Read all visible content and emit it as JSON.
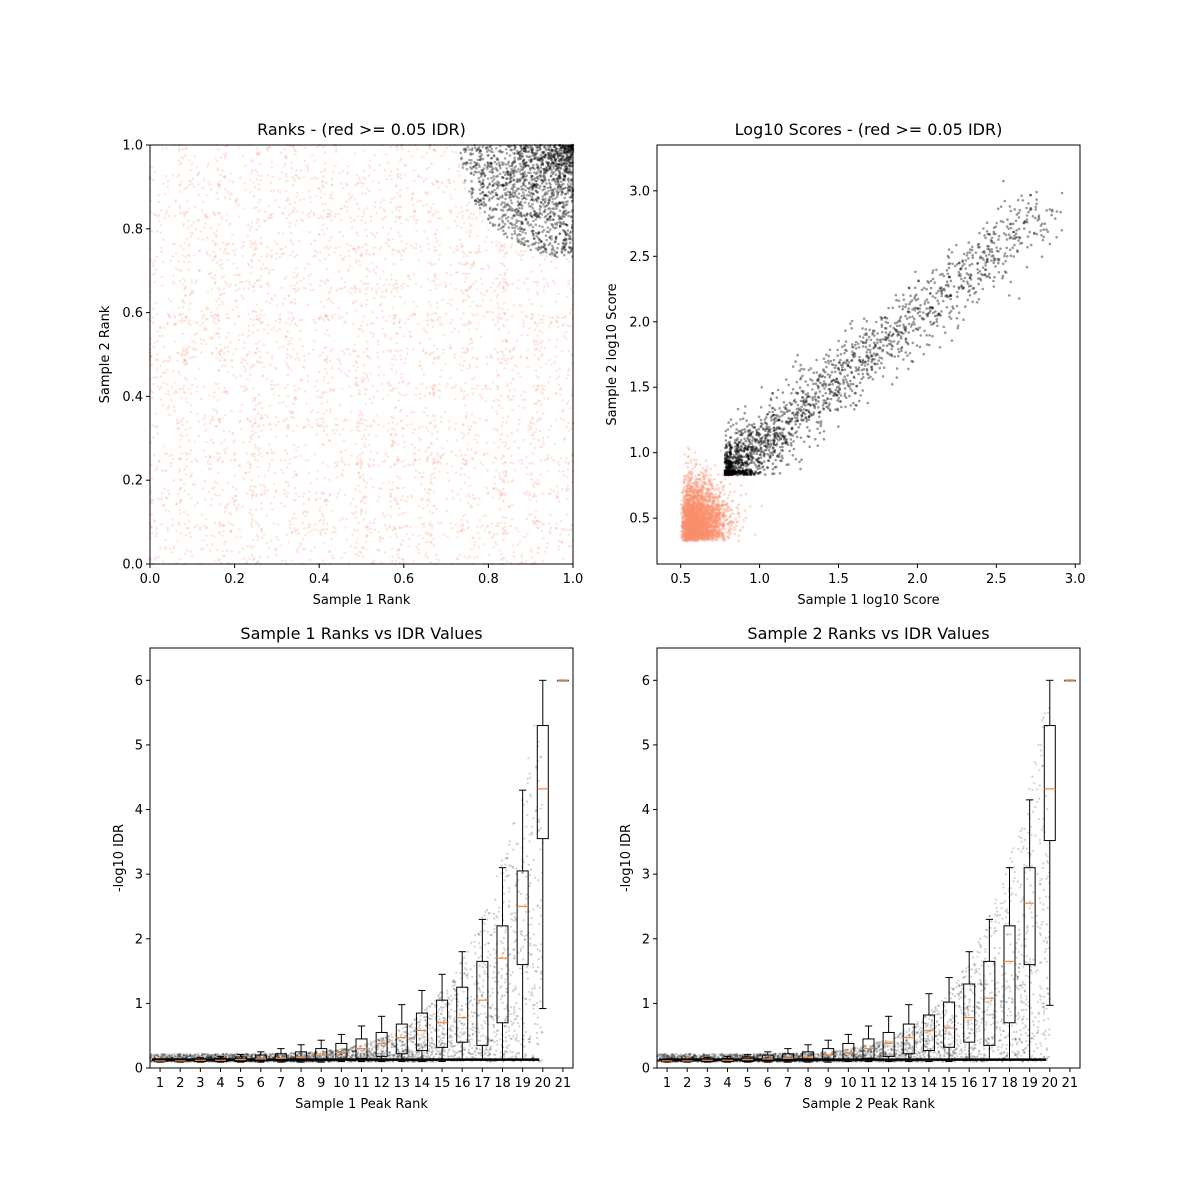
{
  "colors": {
    "pass": "#000000",
    "fail": "#fa8e6d",
    "median": "#f0883c",
    "frame": "#000000"
  },
  "chart_data": [
    {
      "type": "scatter",
      "title": "Ranks - (red >= 0.05 IDR)",
      "xlabel": "Sample 1 Rank",
      "ylabel": "Sample 2 Rank",
      "xlim": [
        0.0,
        1.0
      ],
      "ylim": [
        0.0,
        1.0
      ],
      "xticks": [
        "0.0",
        "0.2",
        "0.4",
        "0.6",
        "0.8",
        "1.0"
      ],
      "yticks": [
        "0.0",
        "0.2",
        "0.4",
        "0.6",
        "0.8",
        "1.0"
      ],
      "series": [
        {
          "name": "IDR >= 0.05",
          "color": "fail",
          "region": "uniform over [0,1] x [0,1] outside top-right arc"
        },
        {
          "name": "IDR < 0.05",
          "color": "pass",
          "region": "top-right corner, rank1 and rank2 above ~0.72"
        }
      ]
    },
    {
      "type": "scatter",
      "title": "Log10 Scores - (red >= 0.05 IDR)",
      "xlabel": "Sample 1 log10 Score",
      "ylabel": "Sample 2 log10 Score",
      "xlim": [
        0.35,
        3.03
      ],
      "ylim": [
        0.15,
        3.35
      ],
      "xticks": [
        "0.5",
        "1.0",
        "1.5",
        "2.0",
        "2.5",
        "3.0"
      ],
      "yticks": [
        "0.5",
        "1.0",
        "1.5",
        "2.0",
        "2.5",
        "3.0"
      ],
      "series": [
        {
          "name": "IDR >= 0.05",
          "color": "fail",
          "x_range": [
            0.5,
            1.2
          ],
          "y_range": [
            0.3,
            1.05
          ]
        },
        {
          "name": "IDR < 0.05",
          "color": "pass",
          "x_range": [
            0.78,
            2.9
          ],
          "y_range": [
            0.82,
            3.2
          ]
        }
      ]
    },
    {
      "type": "box",
      "title": "Sample 1 Ranks vs IDR Values",
      "xlabel": "Sample 1 Peak Rank",
      "ylabel": "-log10 IDR",
      "ylim": [
        0,
        6.5
      ],
      "yticks": [
        "0",
        "1",
        "2",
        "3",
        "4",
        "5",
        "6"
      ],
      "categories": [
        "1",
        "2",
        "3",
        "4",
        "5",
        "6",
        "7",
        "8",
        "9",
        "10",
        "11",
        "12",
        "13",
        "14",
        "15",
        "16",
        "17",
        "18",
        "19",
        "20",
        "21"
      ],
      "boxes": [
        {
          "q1": 0.1,
          "med": 0.11,
          "q3": 0.12,
          "wlo": 0.09,
          "whi": 0.13
        },
        {
          "q1": 0.1,
          "med": 0.11,
          "q3": 0.13,
          "wlo": 0.09,
          "whi": 0.14
        },
        {
          "q1": 0.1,
          "med": 0.12,
          "q3": 0.14,
          "wlo": 0.09,
          "whi": 0.16
        },
        {
          "q1": 0.1,
          "med": 0.12,
          "q3": 0.15,
          "wlo": 0.09,
          "whi": 0.18
        },
        {
          "q1": 0.1,
          "med": 0.13,
          "q3": 0.17,
          "wlo": 0.09,
          "whi": 0.21
        },
        {
          "q1": 0.11,
          "med": 0.14,
          "q3": 0.2,
          "wlo": 0.09,
          "whi": 0.25
        },
        {
          "q1": 0.11,
          "med": 0.15,
          "q3": 0.22,
          "wlo": 0.09,
          "whi": 0.3
        },
        {
          "q1": 0.11,
          "med": 0.17,
          "q3": 0.25,
          "wlo": 0.09,
          "whi": 0.36
        },
        {
          "q1": 0.12,
          "med": 0.2,
          "q3": 0.3,
          "wlo": 0.09,
          "whi": 0.43
        },
        {
          "q1": 0.13,
          "med": 0.24,
          "q3": 0.38,
          "wlo": 0.1,
          "whi": 0.52
        },
        {
          "q1": 0.15,
          "med": 0.3,
          "q3": 0.45,
          "wlo": 0.1,
          "whi": 0.65
        },
        {
          "q1": 0.18,
          "med": 0.38,
          "q3": 0.55,
          "wlo": 0.1,
          "whi": 0.8
        },
        {
          "q1": 0.22,
          "med": 0.47,
          "q3": 0.68,
          "wlo": 0.1,
          "whi": 0.98
        },
        {
          "q1": 0.27,
          "med": 0.58,
          "q3": 0.85,
          "wlo": 0.1,
          "whi": 1.2
        },
        {
          "q1": 0.32,
          "med": 0.7,
          "q3": 1.05,
          "wlo": 0.1,
          "whi": 1.45
        },
        {
          "q1": 0.4,
          "med": 0.78,
          "q3": 1.25,
          "wlo": 0.12,
          "whi": 1.8
        },
        {
          "q1": 0.35,
          "med": 1.05,
          "q3": 1.65,
          "wlo": 0.12,
          "whi": 2.3
        },
        {
          "q1": 0.7,
          "med": 1.7,
          "q3": 2.2,
          "wlo": 0.13,
          "whi": 3.1
        },
        {
          "q1": 1.6,
          "med": 2.5,
          "q3": 3.05,
          "wlo": 0.13,
          "whi": 4.3
        },
        {
          "q1": 3.55,
          "med": 4.32,
          "q3": 5.3,
          "wlo": 0.92,
          "whi": 6.0
        },
        {
          "q1": 6.0,
          "med": 6.0,
          "q3": 6.0,
          "wlo": 6.0,
          "whi": 6.0
        }
      ]
    },
    {
      "type": "box",
      "title": "Sample 2 Ranks vs IDR Values",
      "xlabel": "Sample 2 Peak Rank",
      "ylabel": "-log10 IDR",
      "ylim": [
        0,
        6.5
      ],
      "yticks": [
        "0",
        "1",
        "2",
        "3",
        "4",
        "5",
        "6"
      ],
      "categories": [
        "1",
        "2",
        "3",
        "4",
        "5",
        "6",
        "7",
        "8",
        "9",
        "10",
        "11",
        "12",
        "13",
        "14",
        "15",
        "16",
        "17",
        "18",
        "19",
        "20",
        "21"
      ],
      "boxes": [
        {
          "q1": 0.1,
          "med": 0.11,
          "q3": 0.12,
          "wlo": 0.09,
          "whi": 0.13
        },
        {
          "q1": 0.1,
          "med": 0.11,
          "q3": 0.13,
          "wlo": 0.09,
          "whi": 0.14
        },
        {
          "q1": 0.1,
          "med": 0.12,
          "q3": 0.14,
          "wlo": 0.09,
          "whi": 0.16
        },
        {
          "q1": 0.1,
          "med": 0.12,
          "q3": 0.15,
          "wlo": 0.09,
          "whi": 0.18
        },
        {
          "q1": 0.1,
          "med": 0.13,
          "q3": 0.17,
          "wlo": 0.09,
          "whi": 0.21
        },
        {
          "q1": 0.11,
          "med": 0.14,
          "q3": 0.2,
          "wlo": 0.09,
          "whi": 0.25
        },
        {
          "q1": 0.11,
          "med": 0.15,
          "q3": 0.22,
          "wlo": 0.09,
          "whi": 0.3
        },
        {
          "q1": 0.11,
          "med": 0.17,
          "q3": 0.25,
          "wlo": 0.09,
          "whi": 0.36
        },
        {
          "q1": 0.12,
          "med": 0.2,
          "q3": 0.3,
          "wlo": 0.09,
          "whi": 0.43
        },
        {
          "q1": 0.13,
          "med": 0.24,
          "q3": 0.38,
          "wlo": 0.1,
          "whi": 0.52
        },
        {
          "q1": 0.15,
          "med": 0.3,
          "q3": 0.45,
          "wlo": 0.1,
          "whi": 0.65
        },
        {
          "q1": 0.18,
          "med": 0.38,
          "q3": 0.55,
          "wlo": 0.1,
          "whi": 0.8
        },
        {
          "q1": 0.22,
          "med": 0.47,
          "q3": 0.68,
          "wlo": 0.1,
          "whi": 0.98
        },
        {
          "q1": 0.27,
          "med": 0.58,
          "q3": 0.82,
          "wlo": 0.1,
          "whi": 1.15
        },
        {
          "q1": 0.32,
          "med": 0.62,
          "q3": 1.02,
          "wlo": 0.1,
          "whi": 1.4
        },
        {
          "q1": 0.4,
          "med": 0.78,
          "q3": 1.3,
          "wlo": 0.12,
          "whi": 1.8
        },
        {
          "q1": 0.35,
          "med": 1.08,
          "q3": 1.65,
          "wlo": 0.12,
          "whi": 2.3
        },
        {
          "q1": 0.7,
          "med": 1.65,
          "q3": 2.2,
          "wlo": 0.13,
          "whi": 3.1
        },
        {
          "q1": 1.6,
          "med": 2.55,
          "q3": 3.1,
          "wlo": 0.13,
          "whi": 4.15
        },
        {
          "q1": 3.52,
          "med": 4.32,
          "q3": 5.3,
          "wlo": 0.97,
          "whi": 6.0
        },
        {
          "q1": 6.0,
          "med": 6.0,
          "q3": 6.0,
          "wlo": 6.0,
          "whi": 6.0
        }
      ]
    }
  ]
}
